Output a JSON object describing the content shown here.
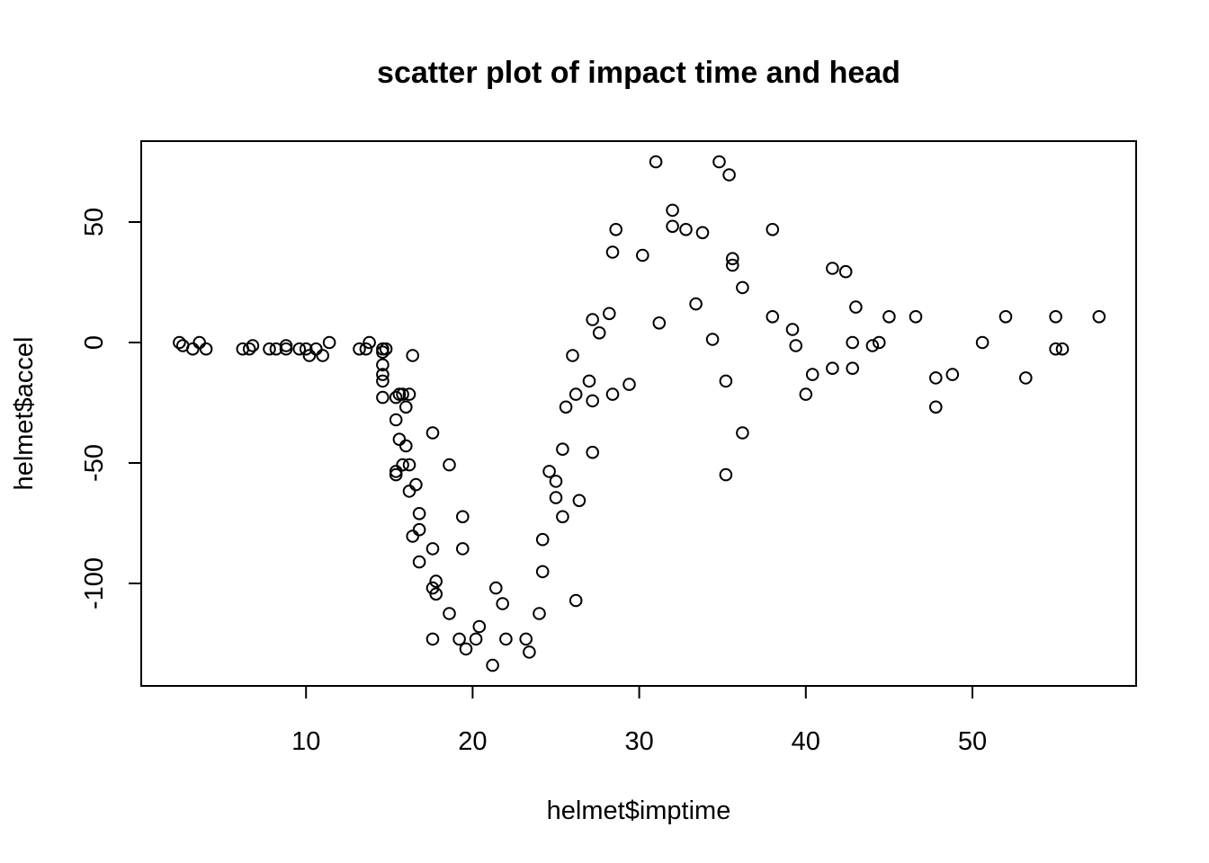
{
  "chart_data": {
    "type": "scatter",
    "title": "scatter plot of impact time and head",
    "xlabel": "helmet$imptime",
    "ylabel": "helmet$accel",
    "xlim": [
      0,
      60
    ],
    "ylim": [
      -140,
      80
    ],
    "xticks": [
      10,
      20,
      30,
      40,
      50
    ],
    "yticks": [
      -100,
      -50,
      0,
      50
    ],
    "grid": false,
    "legend": "none",
    "points": [
      [
        2.4,
        0.0
      ],
      [
        2.6,
        -1.3
      ],
      [
        3.2,
        -2.7
      ],
      [
        3.6,
        0.0
      ],
      [
        4.0,
        -2.7
      ],
      [
        6.2,
        -2.7
      ],
      [
        6.6,
        -2.7
      ],
      [
        6.8,
        -1.3
      ],
      [
        7.8,
        -2.7
      ],
      [
        8.2,
        -2.7
      ],
      [
        8.8,
        -1.3
      ],
      [
        8.8,
        -2.7
      ],
      [
        9.6,
        -2.7
      ],
      [
        10.0,
        -2.7
      ],
      [
        10.2,
        -5.4
      ],
      [
        10.6,
        -2.7
      ],
      [
        11.0,
        -5.4
      ],
      [
        11.4,
        0.0
      ],
      [
        13.2,
        -2.7
      ],
      [
        13.6,
        -2.7
      ],
      [
        13.8,
        0.0
      ],
      [
        14.6,
        -13.3
      ],
      [
        14.6,
        -2.7
      ],
      [
        14.6,
        -22.8
      ],
      [
        14.6,
        -4.0
      ],
      [
        14.6,
        -9.3
      ],
      [
        14.6,
        -16.0
      ],
      [
        14.8,
        -2.7
      ],
      [
        15.4,
        -22.8
      ],
      [
        15.4,
        -32.1
      ],
      [
        15.4,
        -53.5
      ],
      [
        15.4,
        -54.9
      ],
      [
        15.6,
        -40.2
      ],
      [
        15.6,
        -21.5
      ],
      [
        15.8,
        -21.5
      ],
      [
        15.8,
        -50.8
      ],
      [
        16.0,
        -42.9
      ],
      [
        16.0,
        -26.8
      ],
      [
        16.2,
        -21.5
      ],
      [
        16.2,
        -50.8
      ],
      [
        16.2,
        -61.7
      ],
      [
        16.4,
        -5.4
      ],
      [
        16.4,
        -80.4
      ],
      [
        16.6,
        -59.0
      ],
      [
        16.8,
        -71.0
      ],
      [
        16.8,
        -91.1
      ],
      [
        16.8,
        -77.7
      ],
      [
        17.6,
        -37.5
      ],
      [
        17.6,
        -85.6
      ],
      [
        17.6,
        -123.1
      ],
      [
        17.6,
        -101.9
      ],
      [
        17.8,
        -99.1
      ],
      [
        17.8,
        -104.4
      ],
      [
        18.6,
        -112.5
      ],
      [
        18.6,
        -50.8
      ],
      [
        19.2,
        -123.1
      ],
      [
        19.4,
        -85.6
      ],
      [
        19.4,
        -72.3
      ],
      [
        19.6,
        -127.2
      ],
      [
        20.2,
        -123.1
      ],
      [
        20.4,
        -117.9
      ],
      [
        21.2,
        -134.0
      ],
      [
        21.4,
        -101.9
      ],
      [
        21.8,
        -108.4
      ],
      [
        22.0,
        -123.1
      ],
      [
        23.2,
        -123.1
      ],
      [
        23.4,
        -128.5
      ],
      [
        24.0,
        -112.5
      ],
      [
        24.2,
        -95.1
      ],
      [
        24.2,
        -81.8
      ],
      [
        24.6,
        -53.5
      ],
      [
        25.0,
        -64.4
      ],
      [
        25.0,
        -57.6
      ],
      [
        25.4,
        -72.3
      ],
      [
        25.4,
        -44.3
      ],
      [
        25.6,
        -26.8
      ],
      [
        26.0,
        -5.4
      ],
      [
        26.2,
        -107.1
      ],
      [
        26.2,
        -21.5
      ],
      [
        26.4,
        -65.6
      ],
      [
        27.0,
        -16.0
      ],
      [
        27.2,
        -45.6
      ],
      [
        27.2,
        9.5
      ],
      [
        27.2,
        -24.2
      ],
      [
        27.6,
        4.0
      ],
      [
        28.2,
        12.0
      ],
      [
        28.4,
        -21.5
      ],
      [
        28.4,
        37.5
      ],
      [
        28.6,
        46.9
      ],
      [
        29.4,
        -17.4
      ],
      [
        30.2,
        36.2
      ],
      [
        31.0,
        75.0
      ],
      [
        31.2,
        8.1
      ],
      [
        32.0,
        54.9
      ],
      [
        32.0,
        48.2
      ],
      [
        32.8,
        46.9
      ],
      [
        33.4,
        16.0
      ],
      [
        33.8,
        45.6
      ],
      [
        34.4,
        1.3
      ],
      [
        34.8,
        75.0
      ],
      [
        35.2,
        -16.0
      ],
      [
        35.2,
        -54.9
      ],
      [
        35.4,
        69.6
      ],
      [
        35.6,
        34.8
      ],
      [
        35.6,
        32.1
      ],
      [
        36.2,
        22.8
      ],
      [
        36.2,
        -37.5
      ],
      [
        38.0,
        46.9
      ],
      [
        38.0,
        10.7
      ],
      [
        39.2,
        5.4
      ],
      [
        39.4,
        -1.3
      ],
      [
        40.0,
        -21.5
      ],
      [
        40.4,
        -13.3
      ],
      [
        41.6,
        30.8
      ],
      [
        41.6,
        -10.7
      ],
      [
        42.4,
        29.4
      ],
      [
        42.8,
        0.0
      ],
      [
        42.8,
        -10.7
      ],
      [
        43.0,
        14.7
      ],
      [
        44.0,
        -1.3
      ],
      [
        44.4,
        0.0
      ],
      [
        45.0,
        10.7
      ],
      [
        46.6,
        10.7
      ],
      [
        47.8,
        -26.8
      ],
      [
        47.8,
        -14.7
      ],
      [
        48.8,
        -13.3
      ],
      [
        50.6,
        0.0
      ],
      [
        52.0,
        10.7
      ],
      [
        53.2,
        -14.7
      ],
      [
        55.0,
        -2.7
      ],
      [
        55.0,
        10.7
      ],
      [
        55.4,
        -2.7
      ],
      [
        57.6,
        10.7
      ]
    ]
  }
}
